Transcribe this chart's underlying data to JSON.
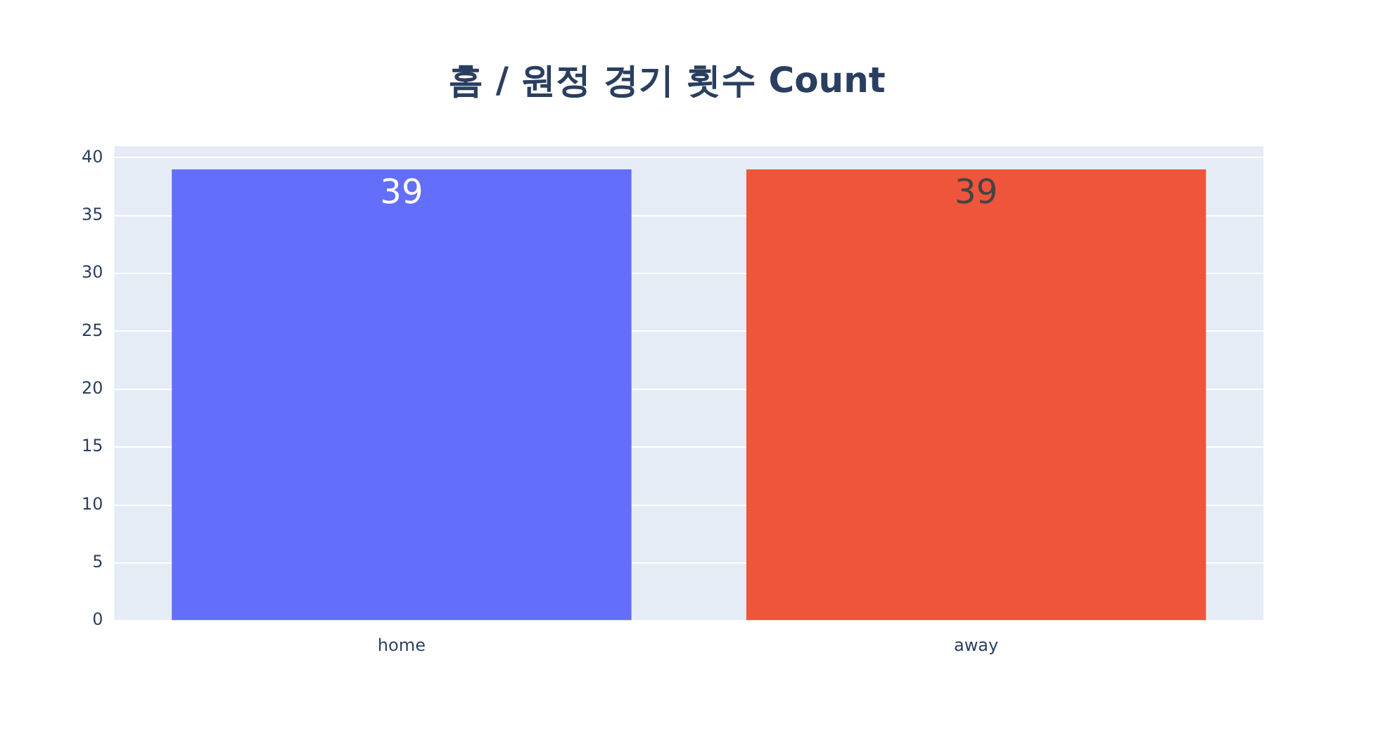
{
  "chart_data": {
    "type": "bar",
    "title": "홈 / 원정 경기 횟수 Count",
    "categories": [
      "home",
      "away"
    ],
    "values": [
      39,
      39
    ],
    "colors": [
      "#636efa",
      "#ef553b"
    ],
    "ylim": [
      0,
      41
    ],
    "yticks": [
      0,
      5,
      10,
      15,
      20,
      25,
      30,
      35,
      40
    ],
    "grid": "y",
    "data_labels": true
  }
}
